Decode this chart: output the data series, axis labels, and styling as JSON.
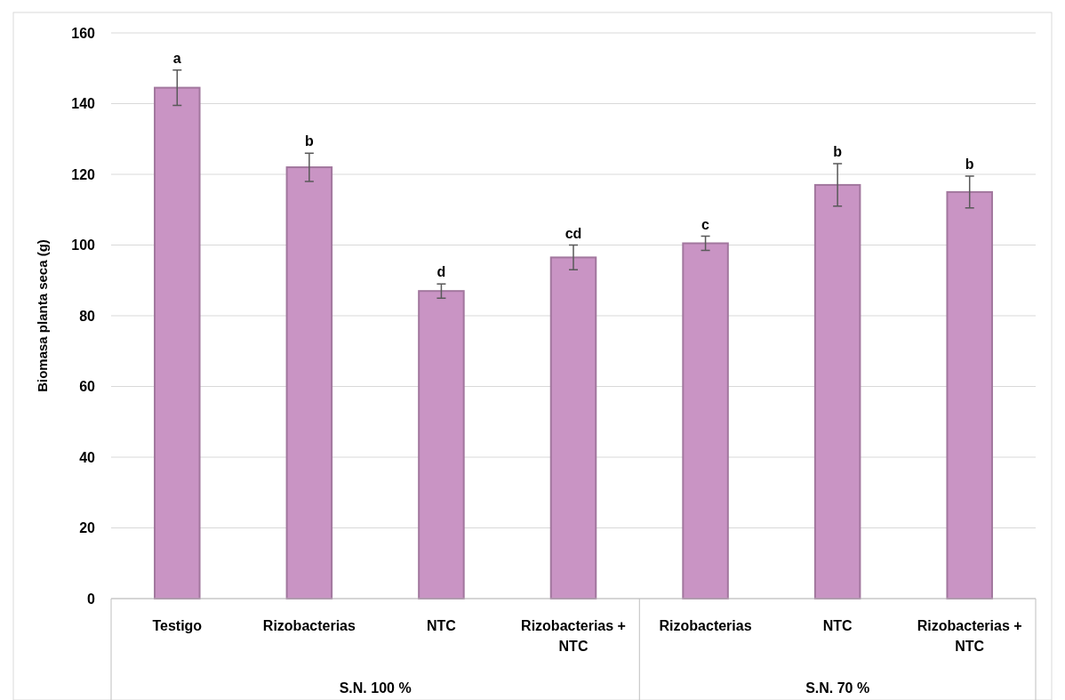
{
  "chart_data": {
    "type": "bar",
    "ylabel": "Biomasa planta seca (g)",
    "categories": [
      "Testigo",
      "Rizobacterias",
      "NTC",
      "Rizobacterias + NTC",
      "Rizobacterias",
      "NTC",
      "Rizobacterias + NTC"
    ],
    "values": [
      144.5,
      122,
      87,
      96.5,
      100.5,
      117,
      115
    ],
    "errors": [
      5,
      4,
      2,
      3.5,
      2,
      6,
      4.5
    ],
    "value_labels": [
      "a",
      "b",
      "d",
      "cd",
      "c",
      "b",
      "b"
    ],
    "color": "#c994c4",
    "ylim": [
      0,
      160
    ],
    "yticks": [
      0,
      20,
      40,
      60,
      80,
      100,
      120,
      140,
      160
    ],
    "grid": "y",
    "annotations": [
      "S.N. 100 %",
      "S.N. 70 %"
    ]
  }
}
